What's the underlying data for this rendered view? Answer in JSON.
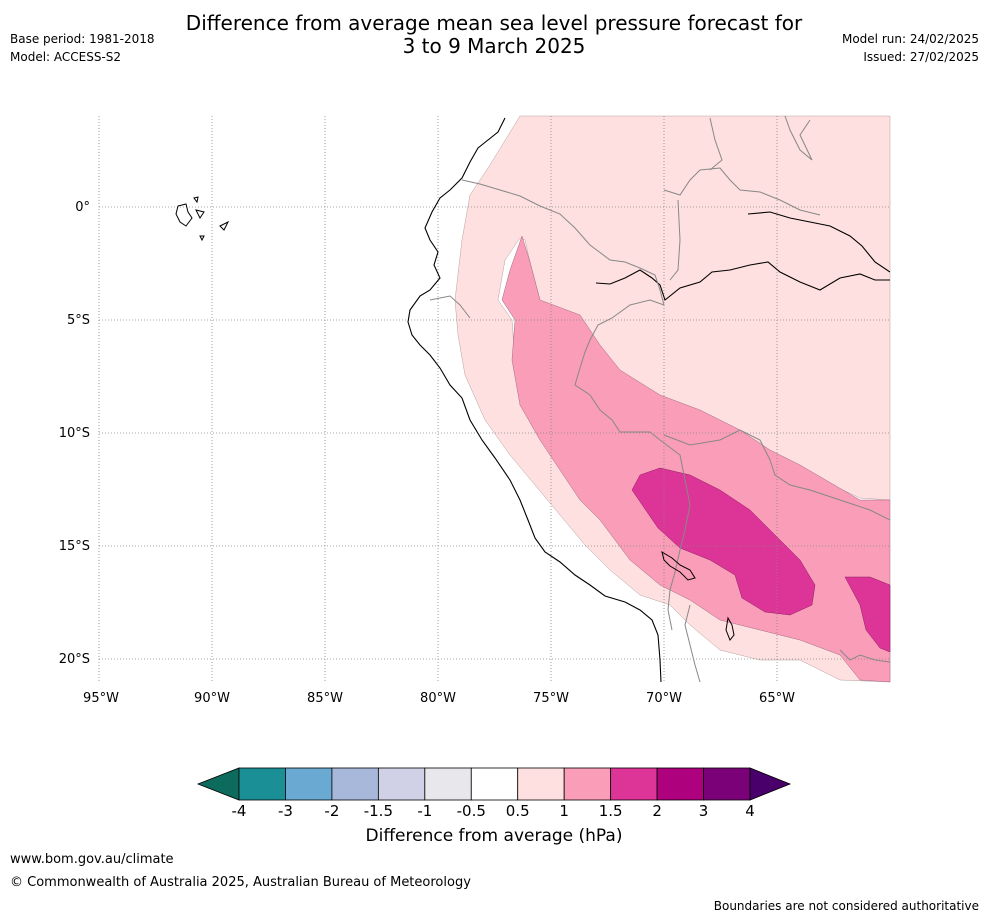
{
  "title_line1": "Difference from average mean sea level pressure forecast for",
  "title_line2": "3 to 9 March 2025",
  "base_period": "Base period: 1981-2018",
  "model": "Model: ACCESS-S2",
  "model_run": "Model run: 24/02/2025",
  "issued": "Issued: 27/02/2025",
  "lat_labels": [
    "0°",
    "5°S",
    "10°S",
    "15°S",
    "20°S"
  ],
  "lon_labels": [
    "95°W",
    "90°W",
    "85°W",
    "80°W",
    "75°W",
    "70°W",
    "65°W"
  ],
  "colorbar": {
    "label": "Difference from average (hPa)",
    "ticks": [
      "-4",
      "-3",
      "-2",
      "-1.5",
      "-1",
      "-0.5",
      "0.5",
      "1",
      "1.5",
      "2",
      "3",
      "4"
    ],
    "colors": {
      "below_min": "#0d6b5e",
      "bins": [
        "#1a9096",
        "#6aaad2",
        "#a8b8da",
        "#d0d1e6",
        "#e8e7ec",
        "#ffffff",
        "#fde0df",
        "#f99db8",
        "#dd3497",
        "#ae017e",
        "#7a0177"
      ],
      "above_max": "#49006a"
    }
  },
  "footer_url": "www.bom.gov.au/climate",
  "footer_copyright": "© Commonwealth of Australia 2025, Australian Bureau of Meteorology",
  "footer_note": "Boundaries are not considered authoritative"
}
